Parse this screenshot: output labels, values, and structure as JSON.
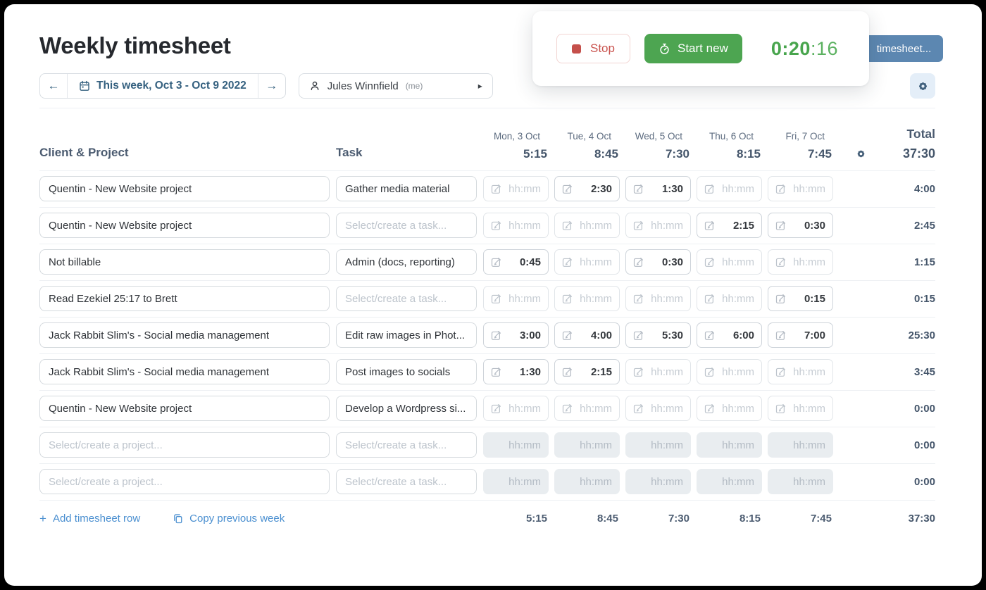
{
  "page": {
    "title": "Weekly timesheet"
  },
  "week_nav": {
    "prev_arrow": "←",
    "label": "This week, Oct 3 - Oct 9 2022",
    "next_arrow": "→"
  },
  "user_selector": {
    "name": "Jules Winnfield",
    "me_suffix": "(me)",
    "caret": "▸"
  },
  "timer_card": {
    "stop_label": "Stop",
    "start_new_label": "Start new",
    "time_hm": "0:20",
    "time_sec": ":16"
  },
  "top_right": {
    "timesheet_button_label": "timesheet..."
  },
  "table": {
    "headers": {
      "client_project": "Client & Project",
      "task": "Task",
      "total": "Total"
    },
    "days": [
      {
        "date": "Mon, 3 Oct",
        "total": "5:15"
      },
      {
        "date": "Tue, 4 Oct",
        "total": "8:45"
      },
      {
        "date": "Wed, 5 Oct",
        "total": "7:30"
      },
      {
        "date": "Thu, 6 Oct",
        "total": "8:15"
      },
      {
        "date": "Fri, 7 Oct",
        "total": "7:45"
      }
    ],
    "grand_total": "37:30",
    "placeholders": {
      "project": "Select/create a project...",
      "task": "Select/create a task...",
      "time": "hh:mm"
    },
    "rows": [
      {
        "project": "Quentin - New Website project",
        "task": "Gather media material",
        "cells": [
          "",
          "2:30",
          "1:30",
          "",
          ""
        ],
        "total": "4:00",
        "disabled": false
      },
      {
        "project": "Quentin - New Website project",
        "task": "",
        "cells": [
          "",
          "",
          "",
          "2:15",
          "0:30"
        ],
        "total": "2:45",
        "disabled": false
      },
      {
        "project": "Not billable",
        "task": "Admin (docs, reporting)",
        "cells": [
          "0:45",
          "",
          "0:30",
          "",
          ""
        ],
        "total": "1:15",
        "disabled": false
      },
      {
        "project": "Read Ezekiel 25:17 to Brett",
        "task": "",
        "cells": [
          "",
          "",
          "",
          "",
          "0:15"
        ],
        "total": "0:15",
        "disabled": false
      },
      {
        "project": "Jack Rabbit Slim's - Social media management",
        "task": "Edit raw images in Phot...",
        "cells": [
          "3:00",
          "4:00",
          "5:30",
          "6:00",
          "7:00"
        ],
        "total": "25:30",
        "disabled": false
      },
      {
        "project": "Jack Rabbit Slim's - Social media management",
        "task": "Post images to socials",
        "cells": [
          "1:30",
          "2:15",
          "",
          "",
          ""
        ],
        "total": "3:45",
        "disabled": false
      },
      {
        "project": "Quentin - New Website project",
        "task": "Develop a Wordpress si...",
        "cells": [
          "",
          "",
          "",
          "",
          ""
        ],
        "total": "0:00",
        "disabled": false
      },
      {
        "project": "",
        "task": "",
        "cells": [
          "",
          "",
          "",
          "",
          ""
        ],
        "total": "0:00",
        "disabled": true
      },
      {
        "project": "",
        "task": "",
        "cells": [
          "",
          "",
          "",
          "",
          ""
        ],
        "total": "0:00",
        "disabled": true
      }
    ]
  },
  "footer": {
    "add_row": "Add timesheet row",
    "copy_week": "Copy previous week",
    "day_totals": [
      "5:15",
      "8:45",
      "7:30",
      "8:15",
      "7:45"
    ],
    "grand_total": "37:30"
  },
  "colors": {
    "accent_blue": "#4a8fd0",
    "steel_blue": "#5c87b1",
    "green": "#4da551",
    "red": "#c9534e",
    "slate": "#44556a"
  }
}
